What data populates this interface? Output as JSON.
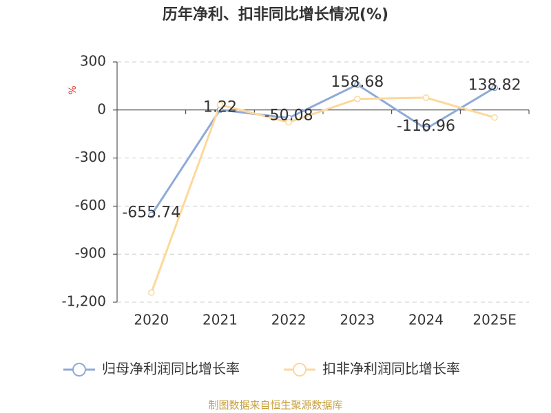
{
  "chart_data": {
    "type": "line",
    "title": "历年净利、扣非同比增长情况(%)",
    "y_unit": "%",
    "categories": [
      "2020",
      "2021",
      "2022",
      "2023",
      "2024",
      "2025E"
    ],
    "series": [
      {
        "name": "归母净利润同比增长率",
        "color": "#8eaad8",
        "values": [
          -655.74,
          1.22,
          -50.08,
          158.68,
          -116.96,
          138.82
        ],
        "show_labels": true
      },
      {
        "name": "扣非净利润同比增长率",
        "color": "#fcd89a",
        "values": [
          -1140,
          33,
          -77,
          69,
          77,
          -47
        ],
        "show_labels": false
      }
    ],
    "ylim": [
      -1200,
      300
    ],
    "yticks": [
      300,
      0,
      -300,
      -600,
      -900,
      {
        "value": -1200,
        "label": "-1,200"
      }
    ],
    "grid": true,
    "legend": "bottom",
    "source": "制图数据来自恒生聚源数据库"
  }
}
